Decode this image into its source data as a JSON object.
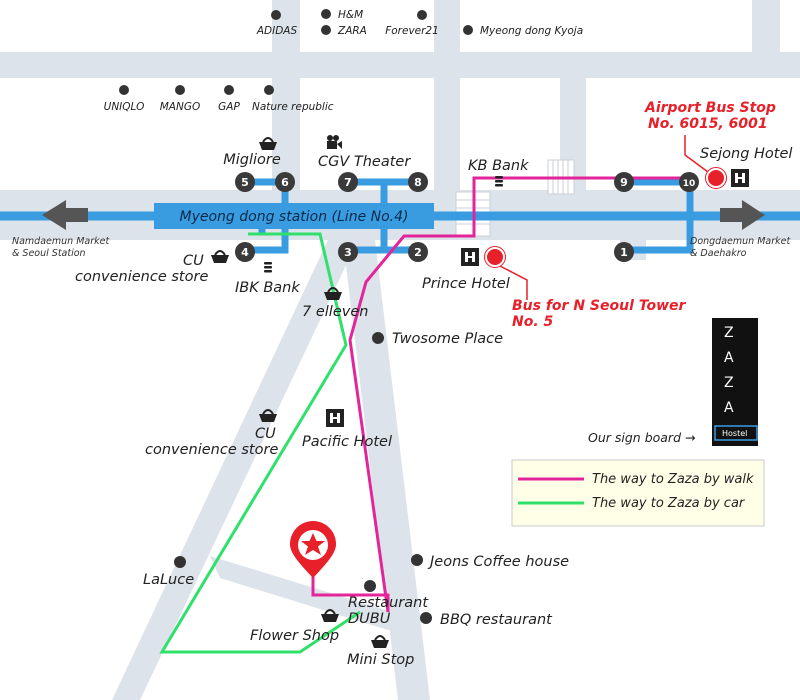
{
  "colors": {
    "road": "#dde3ea",
    "subway": "#3a9ce0",
    "walk_route": "#e3259b",
    "car_route": "#2fe06a",
    "exit_circle": "#3a3a3a",
    "bus_stop": "#e8202a",
    "destination": "#e8202a",
    "legend_bg": "#ffffe8"
  },
  "station": {
    "name": "Myeong dong station (Line No.4)",
    "exits": [
      "1",
      "2",
      "3",
      "4",
      "5",
      "6",
      "7",
      "8",
      "9",
      "10"
    ]
  },
  "directions": {
    "west": "Namdaemun Market\n& Seoul Station",
    "east": "Dongdaemun Market\n& Daehakro"
  },
  "shops_top": [
    "ADIDAS",
    "H&M",
    "ZARA",
    "Forever21",
    "Myeong dong Kyoja"
  ],
  "shops_mid": [
    "UNIQLO",
    "MANGO",
    "GAP",
    "Nature republic"
  ],
  "landmarks": {
    "migliore": "Migliore",
    "cgv": "CGV Theater",
    "kb_bank": "KB Bank",
    "sejong_hotel": "Sejong Hotel",
    "prince_hotel": "Prince Hotel",
    "cu1": "CU\nconvenience store",
    "ibk": "IBK Bank",
    "seven_eleven": "7 elleven",
    "twosome": "Twosome Place",
    "cu2": "CU\nconvenience store",
    "pacific": "Pacific Hotel",
    "jeons": "Jeons Coffee house",
    "laluce": "LaLuce",
    "restaurant": "Restaurant\nDUBU",
    "bbq": "BBQ restaurant",
    "flower": "Flower Shop",
    "ministop": "Mini Stop"
  },
  "bus": {
    "airport": "Airport Bus Stop\nNo. 6015, 6001",
    "tower": "Bus for N Seoul Tower\nNo. 5"
  },
  "signboard": {
    "letters": [
      "Z",
      "A",
      "Z",
      "A"
    ],
    "sub": "Hostel",
    "caption": "Our sign board →"
  },
  "legend": {
    "walk": "The way to Zaza by walk",
    "car": "The way to Zaza by car"
  }
}
